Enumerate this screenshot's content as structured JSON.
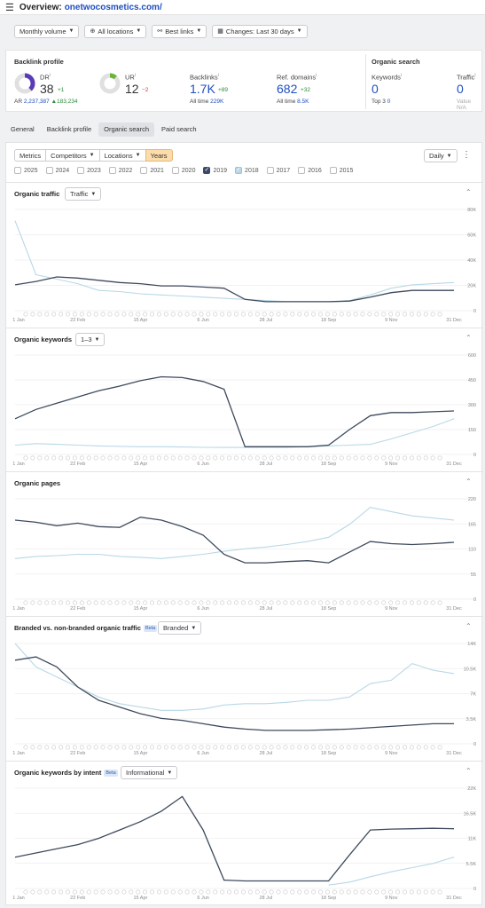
{
  "header": {
    "title": "Overview:",
    "domain": "onetwocosmetics.com/"
  },
  "filters": {
    "monthly_volume": "Monthly volume",
    "all_locations": "All locations",
    "best_links": "Best links",
    "changes": "Changes: Last 30 days"
  },
  "backlink_profile": {
    "title": "Backlink profile",
    "dr": {
      "label": "DR",
      "value": "38",
      "delta": "+1",
      "percent": 0.38
    },
    "ar": {
      "label": "AR",
      "value": "2,237,387",
      "delta": "▲183,234"
    },
    "ur": {
      "label": "UR",
      "value": "12",
      "delta": "−2",
      "percent": 0.12
    },
    "backlinks": {
      "label": "Backlinks",
      "value": "1.7K",
      "delta": "+89",
      "alltime_label": "All time",
      "alltime": "229K"
    },
    "ref_domains": {
      "label": "Ref. domains",
      "value": "682",
      "delta": "+32",
      "alltime_label": "All time",
      "alltime": "8.5K"
    }
  },
  "organic_search": {
    "title": "Organic search",
    "keywords": {
      "label": "Keywords",
      "value": "0",
      "top3_label": "Top 3",
      "top3": "0"
    },
    "traffic": {
      "label": "Traffic",
      "value": "0",
      "value_label": "Value",
      "value_val": "N/A"
    }
  },
  "tabs": [
    "General",
    "Backlink profile",
    "Organic search",
    "Paid search"
  ],
  "active_tab": 2,
  "controls": {
    "metrics": "Metrics",
    "competitors": "Competitors",
    "locations": "Locations",
    "years": "Years",
    "daily": "Daily"
  },
  "years": [
    {
      "label": "2025",
      "state": "off"
    },
    {
      "label": "2024",
      "state": "off"
    },
    {
      "label": "2023",
      "state": "off"
    },
    {
      "label": "2022",
      "state": "off"
    },
    {
      "label": "2021",
      "state": "off"
    },
    {
      "label": "2020",
      "state": "off"
    },
    {
      "label": "2019",
      "state": "on"
    },
    {
      "label": "2018",
      "state": "on2"
    },
    {
      "label": "2017",
      "state": "off"
    },
    {
      "label": "2016",
      "state": "off"
    },
    {
      "label": "2015",
      "state": "off"
    }
  ],
  "x_ticks": [
    "1 Jan",
    "22 Feb",
    "15 Apr",
    "6 Jun",
    "28 Jul",
    "18 Sep",
    "9 Nov",
    "31 Dec"
  ],
  "colors": {
    "series_2019": "#3d4a5c",
    "series_2018": "#b8d8e6",
    "grid": "#eeeeee"
  },
  "chart_data": [
    {
      "type": "line",
      "title": "Organic traffic",
      "dropdown": "Traffic",
      "y_ticks": [
        "80K",
        "60K",
        "40K",
        "20K",
        "0"
      ],
      "ylim": [
        0,
        90000
      ],
      "series": [
        {
          "values": [
            23000,
            26000,
            30000,
            29000,
            27000,
            25000,
            24000,
            22000,
            22000,
            21000,
            20000,
            10000,
            8000,
            8000,
            8000,
            8000,
            8500,
            12000,
            16000,
            18000,
            18000,
            18000
          ]
        },
        {
          "values": [
            80000,
            32000,
            28000,
            24000,
            18000,
            17000,
            15000,
            14000,
            13000,
            12000,
            11000,
            10000,
            9000,
            8000,
            8000,
            8000,
            9000,
            14000,
            20000,
            23000,
            24000,
            25000
          ]
        }
      ]
    },
    {
      "type": "line",
      "title": "Organic keywords",
      "dropdown": "1–3",
      "y_ticks": [
        "600",
        "450",
        "300",
        "150",
        "0"
      ],
      "ylim": [
        0,
        640
      ],
      "series": [
        {
          "values": [
            230,
            290,
            330,
            370,
            410,
            440,
            475,
            500,
            495,
            470,
            420,
            50,
            50,
            50,
            50,
            60,
            160,
            250,
            270,
            270,
            275,
            280
          ]
        },
        {
          "values": [
            60,
            70,
            65,
            60,
            55,
            52,
            50,
            50,
            48,
            46,
            45,
            45,
            45,
            45,
            50,
            55,
            60,
            65,
            100,
            140,
            180,
            230
          ]
        }
      ]
    },
    {
      "type": "line",
      "title": "Organic pages",
      "dropdown": "",
      "y_ticks": [
        "220",
        "165",
        "110",
        "55",
        "0"
      ],
      "ylim": [
        0,
        235
      ],
      "series": [
        {
          "values": [
            185,
            180,
            172,
            178,
            170,
            168,
            192,
            185,
            170,
            150,
            105,
            85,
            85,
            88,
            90,
            85,
            110,
            135,
            130,
            128,
            130,
            133
          ]
        },
        {
          "values": [
            95,
            100,
            102,
            105,
            105,
            100,
            98,
            95,
            100,
            105,
            112,
            118,
            122,
            128,
            135,
            145,
            175,
            215,
            205,
            195,
            190,
            185
          ]
        }
      ]
    },
    {
      "type": "line",
      "title": "Branded vs. non-branded organic traffic",
      "badge": "Beta",
      "dropdown": "Branded",
      "y_ticks": [
        "14K",
        "10.5K",
        "7K",
        "3.5K",
        "0"
      ],
      "ylim": [
        0,
        15000
      ],
      "series": [
        {
          "values": [
            12500,
            13000,
            11500,
            8500,
            6500,
            5500,
            4500,
            3800,
            3500,
            3000,
            2500,
            2200,
            2000,
            2000,
            2000,
            2100,
            2200,
            2400,
            2600,
            2800,
            3000,
            3000
          ]
        },
        {
          "values": [
            15000,
            11500,
            10000,
            8500,
            7000,
            6000,
            5500,
            5000,
            5000,
            5200,
            5800,
            6000,
            6000,
            6200,
            6500,
            6500,
            7000,
            9000,
            9500,
            12000,
            11000,
            10500
          ]
        }
      ]
    },
    {
      "type": "line",
      "title": "Organic keywords by intent",
      "badge": "Beta",
      "dropdown": "Informational",
      "y_ticks": [
        "22K",
        "16.5K",
        "11K",
        "5.5K",
        "0"
      ],
      "ylim": [
        0,
        24000
      ],
      "series": [
        {
          "values": [
            7500,
            8500,
            9500,
            10500,
            12000,
            14000,
            16000,
            18500,
            22000,
            14000,
            2000,
            1800,
            1800,
            1800,
            1800,
            1800,
            8000,
            14000,
            14200,
            14300,
            14400,
            14300
          ]
        },
        {
          "values": [
            null,
            null,
            null,
            null,
            null,
            null,
            null,
            null,
            null,
            null,
            null,
            null,
            null,
            null,
            null,
            800,
            1500,
            2800,
            4000,
            5000,
            6000,
            7500
          ]
        }
      ]
    }
  ]
}
